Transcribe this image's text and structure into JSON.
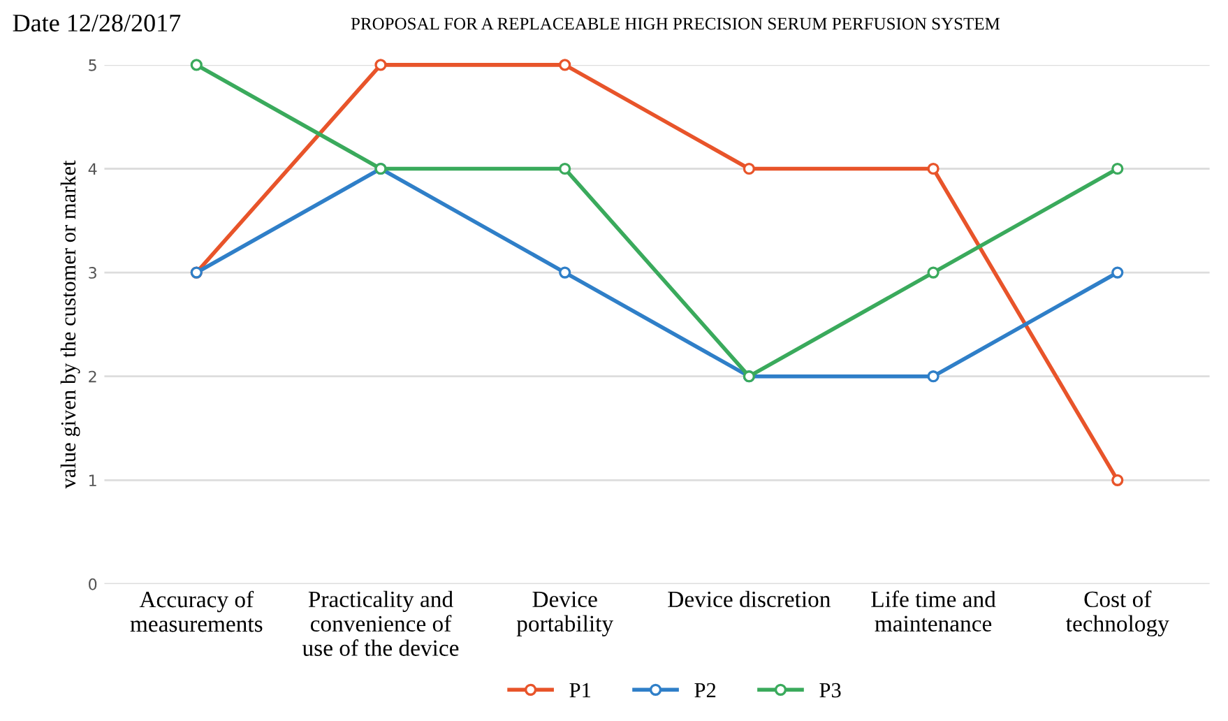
{
  "chart_data": {
    "type": "line",
    "title": "PROPOSAL FOR A REPLACEABLE HIGH PRECISION SERUM PERFUSION SYSTEM",
    "annotations": [
      "Date 12/28/2017"
    ],
    "ylabel": "value given by the customer or market",
    "categories": [
      "Accuracy of measurements",
      "Practicality and convenience of use of the device",
      "Device portability",
      "Device discretion",
      "Life time and maintenance",
      "Cost of technology"
    ],
    "series": [
      {
        "name": "P1",
        "color": "#e8542a",
        "values": [
          3,
          5,
          5,
          4,
          4,
          1
        ]
      },
      {
        "name": "P2",
        "color": "#2f7fc8",
        "values": [
          3,
          4,
          3,
          2,
          2,
          3
        ]
      },
      {
        "name": "P3",
        "color": "#3aaa5c",
        "values": [
          5,
          4,
          4,
          2,
          3,
          4
        ]
      }
    ],
    "ylim": [
      0,
      5
    ],
    "yticks": [
      0,
      1,
      2,
      3,
      4,
      5
    ],
    "grid": "y",
    "legend": "bottom",
    "marker": "circle",
    "line_style": "solid"
  }
}
